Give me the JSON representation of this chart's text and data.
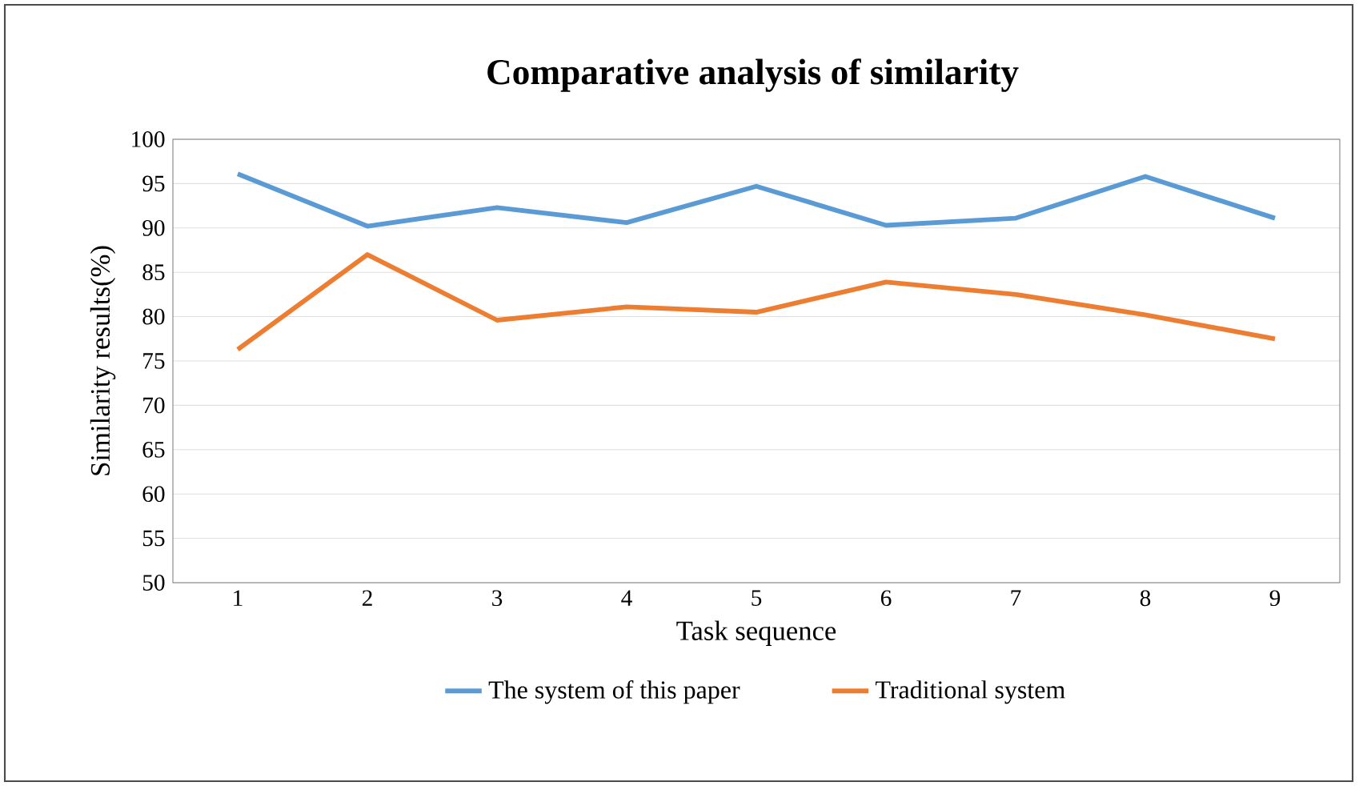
{
  "chart_data": {
    "type": "line",
    "title": "Comparative analysis of similarity",
    "xlabel": "Task sequence",
    "ylabel": "Similarity results(%)",
    "categories": [
      "1",
      "2",
      "3",
      "4",
      "5",
      "6",
      "7",
      "8",
      "9"
    ],
    "series": [
      {
        "name": "The system of this paper",
        "color": "#5b9bd5",
        "values": [
          96.1,
          90.2,
          92.3,
          90.6,
          94.7,
          90.3,
          91.1,
          95.8,
          91.1
        ]
      },
      {
        "name": "Traditional system",
        "color": "#ed7d31",
        "values": [
          76.3,
          87.0,
          79.6,
          81.1,
          80.5,
          83.9,
          82.5,
          80.2,
          77.5
        ]
      }
    ],
    "ylim": [
      50,
      100
    ],
    "yticks": [
      50,
      55,
      60,
      65,
      70,
      75,
      80,
      85,
      90,
      95,
      100
    ],
    "grid": "y",
    "legend": "bottom",
    "marker": "none",
    "line_style": "solid"
  }
}
